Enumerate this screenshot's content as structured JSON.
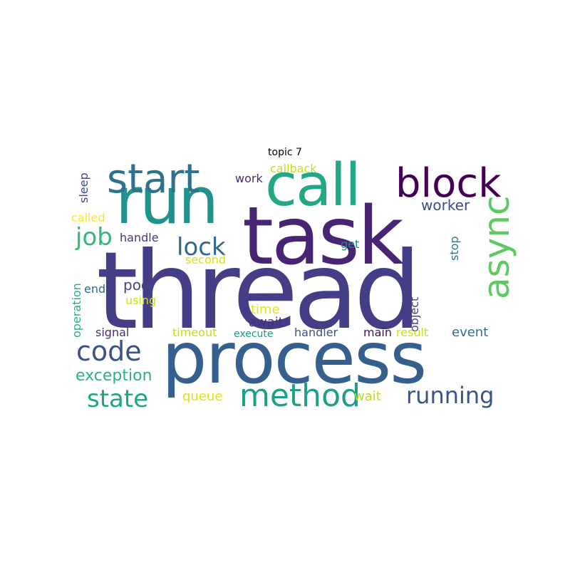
{
  "title": "topic 7",
  "words": [
    {
      "text": "thread",
      "color": "#433e85"
    },
    {
      "text": "process",
      "color": "#355f8d"
    },
    {
      "text": "task",
      "color": "#482475"
    },
    {
      "text": "run",
      "color": "#21918c"
    },
    {
      "text": "call",
      "color": "#22a884"
    },
    {
      "text": "start",
      "color": "#2c728e"
    },
    {
      "text": "block",
      "color": "#440154"
    },
    {
      "text": "async",
      "color": "#5ec962"
    },
    {
      "text": "method",
      "color": "#1f9e89"
    },
    {
      "text": "code",
      "color": "#3b528b"
    },
    {
      "text": "running",
      "color": "#3b528b"
    },
    {
      "text": "state",
      "color": "#20a486"
    },
    {
      "text": "job",
      "color": "#35b779"
    },
    {
      "text": "lock",
      "color": "#31688e"
    },
    {
      "text": "exception",
      "color": "#2db27d"
    },
    {
      "text": "worker",
      "color": "#3e4989"
    },
    {
      "text": "work",
      "color": "#482878"
    },
    {
      "text": "callback",
      "color": "#c2df23"
    },
    {
      "text": "handle",
      "color": "#46337e"
    },
    {
      "text": "get",
      "color": "#26828e"
    },
    {
      "text": "stop",
      "color": "#2a788e"
    },
    {
      "text": "sleep",
      "color": "#3e4989"
    },
    {
      "text": "called",
      "color": "#fde725"
    },
    {
      "text": "second",
      "color": "#d8e219"
    },
    {
      "text": "pool",
      "color": "#414487"
    },
    {
      "text": "end",
      "color": "#31688e"
    },
    {
      "text": "using",
      "color": "#d0e11c"
    },
    {
      "text": "operation",
      "color": "#29af7f"
    },
    {
      "text": "time",
      "color": "#e5e419"
    },
    {
      "text": "await",
      "color": "#472d7b"
    },
    {
      "text": "object",
      "color": "#3f4788"
    },
    {
      "text": "signal",
      "color": "#472c7a"
    },
    {
      "text": "timeout",
      "color": "#bddf26"
    },
    {
      "text": "execute",
      "color": "#1f988b"
    },
    {
      "text": "handler",
      "color": "#3b528b"
    },
    {
      "text": "main",
      "color": "#471063"
    },
    {
      "text": "result",
      "color": "#c8e020"
    },
    {
      "text": "event",
      "color": "#2c728e"
    },
    {
      "text": "queue",
      "color": "#dde318"
    },
    {
      "text": "wait",
      "color": "#b8de29"
    }
  ]
}
